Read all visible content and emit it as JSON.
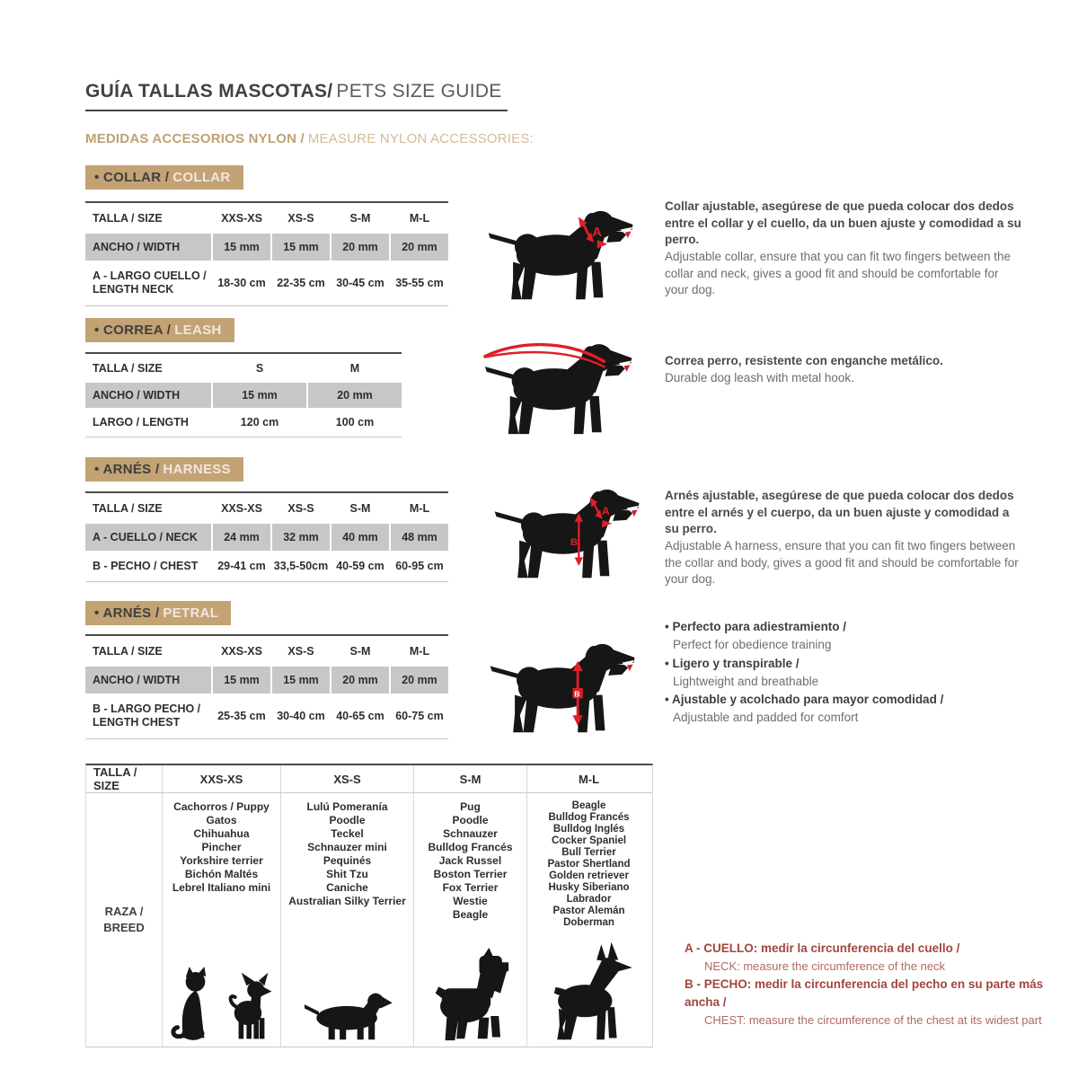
{
  "header": {
    "title_es": "GUÍA TALLAS MASCOTAS/",
    "title_en": "PETS SIZE GUIDE",
    "subtitle_es": "MEDIDAS ACCESORIOS NYLON /",
    "subtitle_en": "MEASURE NYLON ACCESSORIES:"
  },
  "colors": {
    "accent_tan": "#c3a274",
    "annotation_red": "#e01f26",
    "note_red": "#a2463d",
    "row_gray": "#c7c7c7",
    "text_dark": "#424242"
  },
  "sections": [
    {
      "badge_es": "COLLAR /",
      "badge_en": "COLLAR",
      "table": {
        "header": [
          "TALLA / SIZE",
          "XXS-XS",
          "XS-S",
          "S-M",
          "M-L"
        ],
        "rows": [
          {
            "label": "ANCHO / WIDTH",
            "values": [
              "15 mm",
              "15 mm",
              "20 mm",
              "20 mm"
            ]
          },
          {
            "label": "A - LARGO CUELLO / LENGTH NECK",
            "values": [
              "18-30 cm",
              "22-35 cm",
              "30-45 cm",
              "35-55 cm"
            ]
          }
        ]
      },
      "desc_es": "Collar ajustable, asegúrese de que pueda colocar dos dedos entre el collar y el cuello, da un buen ajuste y comodidad a su perro.",
      "desc_en": "Adjustable collar, ensure that you can fit two fingers between the collar and neck, gives a good fit and should be comfortable for your dog."
    },
    {
      "badge_es": "CORREA /",
      "badge_en": "LEASH",
      "table": {
        "header": [
          "TALLA / SIZE",
          "S",
          "M"
        ],
        "rows": [
          {
            "label": "ANCHO / WIDTH",
            "values": [
              "15 mm",
              "20 mm"
            ]
          },
          {
            "label": "LARGO / LENGTH",
            "values": [
              "120 cm",
              "100 cm"
            ]
          }
        ]
      },
      "desc_es": "Correa perro, resistente con enganche metálico.",
      "desc_en": "Durable dog leash with metal hook."
    },
    {
      "badge_es": "ARNÉS /",
      "badge_en": "HARNESS",
      "table": {
        "header": [
          "TALLA / SIZE",
          "XXS-XS",
          "XS-S",
          "S-M",
          "M-L"
        ],
        "rows": [
          {
            "label": "A - CUELLO / NECK",
            "values": [
              "24 mm",
              "32 mm",
              "40 mm",
              "48 mm"
            ]
          },
          {
            "label": "B - PECHO / CHEST",
            "values": [
              "29-41 cm",
              "33,5-50cm",
              "40-59 cm",
              "60-95 cm"
            ]
          }
        ]
      },
      "desc_es": "Arnés ajustable, asegúrese de que pueda colocar dos dedos entre el arnés y el cuerpo, da un buen ajuste y comodidad a su perro.",
      "desc_en": "Adjustable A harness, ensure that you can fit two fingers between the collar and body, gives a good fit and should be comfortable for your dog."
    },
    {
      "badge_es": "ARNÉS /",
      "badge_en": "PETRAL",
      "table": {
        "header": [
          "TALLA / SIZE",
          "XXS-XS",
          "XS-S",
          "S-M",
          "M-L"
        ],
        "rows": [
          {
            "label": "ANCHO / WIDTH",
            "values": [
              "15 mm",
              "15 mm",
              "20 mm",
              "20 mm"
            ]
          },
          {
            "label": "B - LARGO PECHO / LENGTH CHEST",
            "values": [
              "25-35 cm",
              "30-40 cm",
              "40-65 cm",
              "60-75 cm"
            ]
          }
        ]
      },
      "bullets": [
        {
          "es": "Perfecto para adiestramiento /",
          "en": "Perfect for obedience training"
        },
        {
          "es": "Ligero y transpirable /",
          "en": "Lightweight and breathable"
        },
        {
          "es": "Ajustable y acolchado para mayor comodidad /",
          "en": "Adjustable and padded for comfort"
        }
      ]
    }
  ],
  "breed_table": {
    "header": [
      "TALLA /  SIZE",
      "XXS-XS",
      "XS-S",
      "S-M",
      "M-L"
    ],
    "row_label": [
      "RAZA /",
      "BREED"
    ],
    "columns": [
      {
        "size": "XXS-XS",
        "breeds": [
          "Cachorros / Puppy",
          "Gatos",
          "Chihuahua",
          "Pincher",
          "Yorkshire terrier",
          "Bichón Maltés",
          "Lebrel Italiano mini"
        ]
      },
      {
        "size": "XS-S",
        "breeds": [
          "Lulú Pomeranía",
          "Poodle",
          "Teckel",
          "Schnauzer mini",
          "Pequinés",
          "Shit Tzu",
          "Caniche",
          "Australian Silky Terrier"
        ]
      },
      {
        "size": "S-M",
        "breeds": [
          "Pug",
          "Poodle",
          "Schnauzer",
          "Bulldog Francés",
          "Jack Russel",
          "Boston Terrier",
          "Fox Terrier",
          "Westie",
          "Beagle"
        ]
      },
      {
        "size": "M-L",
        "breeds": [
          "Beagle",
          "Bulldog Francés",
          "Bulldog Inglés",
          "Cocker Spaniel",
          "Bull Terrier",
          "Pastor Shertland",
          "Golden retriever",
          "Husky Siberiano",
          "Labrador",
          "Pastor Alemán",
          "Doberman"
        ]
      }
    ]
  },
  "notes": [
    {
      "es": "A - CUELLO: medir la circunferencia del cuello /",
      "en": "NECK: measure the circumference of the neck"
    },
    {
      "es": "B - PECHO: medir la circunferencia del pecho en su parte más ancha /",
      "en": "CHEST: measure the circumference of the chest at its widest part"
    }
  ]
}
